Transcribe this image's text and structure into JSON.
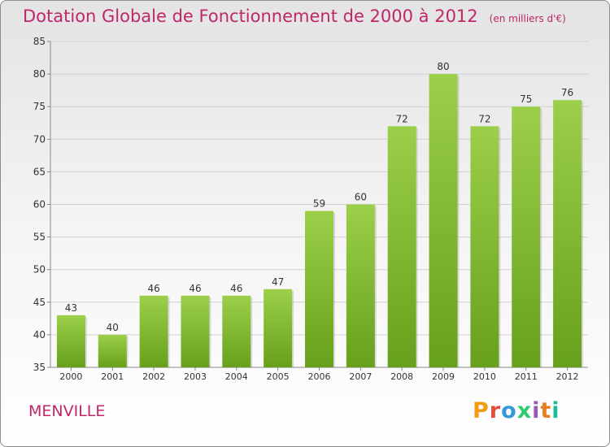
{
  "header": {
    "title": "Dotation Globale de Fonctionnement de 2000 à 2012",
    "unit": "(en milliers d'€)"
  },
  "footer": {
    "commune": "MENVILLE",
    "brand": "Proxiti",
    "brand_colors": [
      "#f39c12",
      "#e74c3c",
      "#3498db",
      "#2ecc71",
      "#9b59b6",
      "#e67e22",
      "#1abc9c"
    ]
  },
  "chart_data": {
    "type": "bar",
    "categories": [
      "2000",
      "2001",
      "2002",
      "2003",
      "2004",
      "2005",
      "2006",
      "2007",
      "2008",
      "2009",
      "2010",
      "2011",
      "2012"
    ],
    "values": [
      43,
      40,
      46,
      46,
      46,
      47,
      59,
      60,
      72,
      80,
      72,
      75,
      76
    ],
    "ylim": [
      35,
      85
    ],
    "yticks": [
      35,
      40,
      45,
      50,
      55,
      60,
      65,
      70,
      75,
      80,
      85
    ],
    "grid": true,
    "bar_color_top": "#9ccf4a",
    "bar_color_bottom": "#67a01c",
    "data_labels": true
  }
}
